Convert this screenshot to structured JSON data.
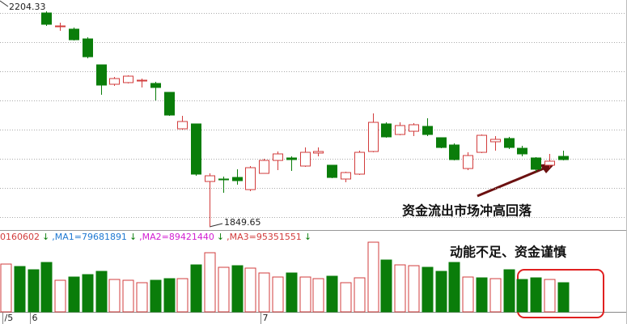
{
  "chart_data": {
    "type": "candlestick",
    "categories": [
      "/5",
      null,
      "6",
      null,
      null,
      null,
      null,
      null,
      null,
      null,
      null,
      null,
      null,
      null,
      null,
      null,
      null,
      null,
      null,
      "7",
      null,
      null,
      null,
      null,
      null,
      null,
      null,
      null,
      null,
      null,
      null,
      null,
      null,
      null,
      null,
      null,
      null,
      null,
      null,
      null,
      null,
      null
    ],
    "open": [
      null,
      null,
      null,
      2187.7,
      2165.9,
      2162.1,
      2146.7,
      2105.7,
      2075.0,
      2077.6,
      2080.1,
      2076.3,
      2062.2,
      2004.6,
      2012.3,
      1921.3,
      1925.2,
      1927.7,
      1908.5,
      1934.1,
      1954.6,
      1958.5,
      1945.7,
      1966.2,
      1947.0,
      1925.2,
      1932.9,
      1968.7,
      2012.3,
      1995.6,
      2000.7,
      2008.4,
      1990.5,
      1979.0,
      1941.8,
      1967.4,
      1984.1,
      1989.2,
      1973.8,
      1958.5,
      1947.0,
      1961.0
    ],
    "high": [
      null,
      null,
      null,
      2190.2,
      2172.3,
      2164.6,
      2149.3,
      2105.7,
      2086.5,
      2089.1,
      2084.0,
      2078.8,
      2062.2,
      2025.1,
      2012.3,
      1934.1,
      1929.0,
      1940.6,
      1945.7,
      1957.2,
      1968.7,
      1961.0,
      1975.1,
      1975.1,
      1947.0,
      1936.7,
      1970.0,
      2028.9,
      2014.8,
      2014.8,
      2013.5,
      2021.2,
      1990.5,
      1981.5,
      1967.4,
      1995.6,
      1993.1,
      1991.8,
      1977.7,
      1959.8,
      1964.9,
      1970.0
    ],
    "low": [
      null,
      null,
      null,
      2167.2,
      2159.5,
      2144.1,
      2116.0,
      2058.4,
      2072.4,
      2076.3,
      2069.9,
      2049.4,
      2025.1,
      2003.3,
      1930.3,
      1849.65,
      1903.4,
      1916.2,
      1906.0,
      1934.1,
      1939.3,
      1938.0,
      1944.4,
      1961.0,
      1926.5,
      1920.1,
      1931.6,
      1967.4,
      1990.5,
      1994.3,
      1993.1,
      1993.1,
      1973.8,
      1954.6,
      1939.3,
      1966.2,
      1970.0,
      1972.6,
      1961.0,
      1936.7,
      1943.1,
      1954.6
    ],
    "close": [
      null,
      null,
      null,
      2169.8,
      2167.2,
      2145.4,
      2118.5,
      2073.7,
      2084.0,
      2087.8,
      2081.4,
      2069.9,
      2026.3,
      2016.1,
      1932.9,
      1930.3,
      1923.9,
      1922.6,
      1943.1,
      1954.6,
      1964.9,
      1955.9,
      1967.4,
      1968.7,
      1927.7,
      1935.4,
      1967.4,
      2014.8,
      1991.8,
      2009.7,
      2011.0,
      1995.6,
      1975.1,
      1955.9,
      1962.3,
      1994.3,
      1987.9,
      1975.1,
      1964.9,
      1940.6,
      1953.4,
      1955.9
    ],
    "up_color": "#d23c3c",
    "down_color": "#0a7d0a",
    "ylim": [
      1845.8,
      2208.2
    ],
    "yticks": [
      2187.9,
      2141.8,
      2095.7,
      2049.6,
      2003.5,
      1957.4,
      1911.3,
      1865.2
    ],
    "grid": true,
    "high_label": "2204.33",
    "low_label": "1849.65",
    "volume": {
      "values": [
        94400000,
        89600000,
        83200000,
        97600000,
        62400000,
        68800000,
        73600000,
        80000000,
        64000000,
        62400000,
        57600000,
        62400000,
        65600000,
        65600000,
        92800000,
        116800000,
        88000000,
        91200000,
        86400000,
        76800000,
        68800000,
        76800000,
        68800000,
        65600000,
        70400000,
        57600000,
        67200000,
        137600000,
        102400000,
        92800000,
        91200000,
        88000000,
        80000000,
        97600000,
        68800000,
        67200000,
        65600000,
        83200000,
        64000000,
        67200000,
        64000000,
        57600000
      ],
      "colors": [
        "#d23c3c",
        "#0a7d0a",
        "#0a7d0a",
        "#0a7d0a",
        "#d23c3c",
        "#0a7d0a",
        "#0a7d0a",
        "#0a7d0a",
        "#d23c3c",
        "#d23c3c",
        "#d23c3c",
        "#0a7d0a",
        "#0a7d0a",
        "#d23c3c",
        "#0a7d0a",
        "#d23c3c",
        "#d23c3c",
        "#0a7d0a",
        "#d23c3c",
        "#d23c3c",
        "#d23c3c",
        "#0a7d0a",
        "#d23c3c",
        "#d23c3c",
        "#0a7d0a",
        "#d23c3c",
        "#d23c3c",
        "#d23c3c",
        "#0a7d0a",
        "#d23c3c",
        "#d23c3c",
        "#0a7d0a",
        "#0a7d0a",
        "#0a7d0a",
        "#d23c3c",
        "#0a7d0a",
        "#d23c3c",
        "#0a7d0a",
        "#0a7d0a",
        "#0a7d0a",
        "#d23c3c",
        "#0a7d0a"
      ],
      "ylim": [
        0,
        139200000
      ]
    },
    "indicator_legend": [
      {
        "label": "0160602",
        "color": "#d23c3c",
        "arrow": "↓"
      },
      {
        "label": ",MA1=79681891",
        "color": "#1e78d2",
        "arrow": "↓"
      },
      {
        "label": ",MA2=89421440",
        "color": "#d21ed2",
        "arrow": "↓"
      },
      {
        "label": ",MA3=95351551",
        "color": "#d23c3c",
        "arrow": "↓"
      }
    ],
    "arrow_color": "#0a7d0a",
    "annotations": [
      "资金流出市场冲高回落",
      "动能不足、资金谨慎"
    ]
  }
}
